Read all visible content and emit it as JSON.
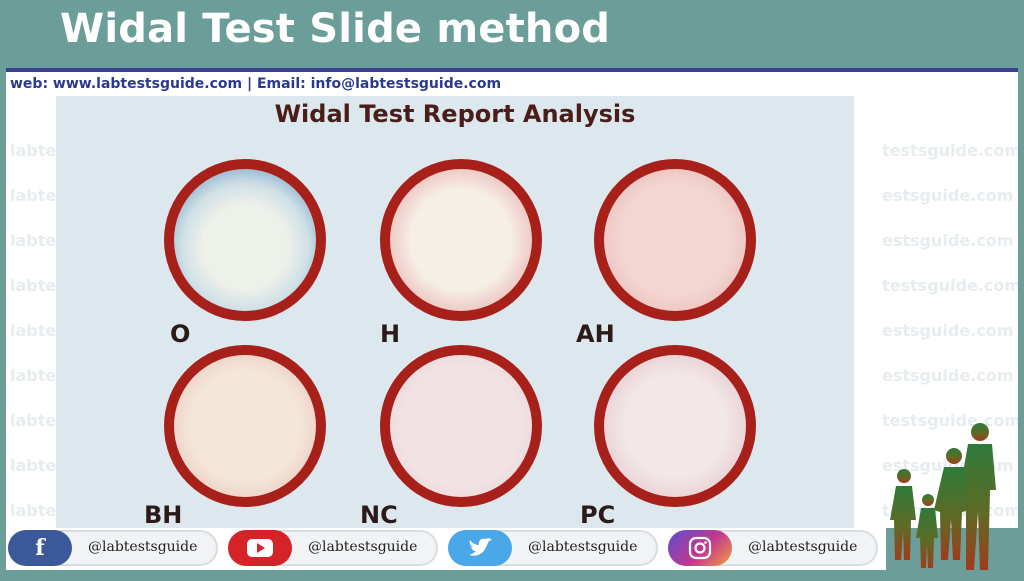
{
  "header": {
    "title": "Widal Test Slide method"
  },
  "contact": {
    "line": "web:  www.labtestsguide.com   |  Email: info@labtestsguide.com"
  },
  "watermark": {
    "left": [
      "labtes",
      "labtes",
      "labtes",
      "labtes",
      "labtes",
      "labtes",
      "labtes",
      "labtes",
      "labtes"
    ],
    "right": [
      "testsguide.com",
      "estsguide.com",
      "estsguide.com",
      "testsguide.com",
      "estsguide.com",
      "estsguide.com",
      "testsguide.com",
      "estsguide.com",
      "testsguide.com"
    ]
  },
  "panel": {
    "title": "Widal Test Report Analysis",
    "slides": [
      {
        "label": "O"
      },
      {
        "label": "H"
      },
      {
        "label": "AH"
      },
      {
        "label": "BH"
      },
      {
        "label": "NC"
      },
      {
        "label": "PC"
      }
    ]
  },
  "social": {
    "items": [
      {
        "icon": "facebook-icon",
        "handle": "@labtestsguide",
        "color": "#3b5998"
      },
      {
        "icon": "youtube-icon",
        "handle": "@labtestsguide",
        "color": "#d42428"
      },
      {
        "icon": "twitter-icon",
        "handle": "@labtestsguide",
        "color": "#4aa8e8"
      },
      {
        "icon": "instagram-icon",
        "handle": "@labtestsguide",
        "color": "#c2378f"
      }
    ]
  },
  "colors": {
    "background": "#6b9e99",
    "accent": "#3a3f8f",
    "slide_ring": "#a8201a"
  }
}
